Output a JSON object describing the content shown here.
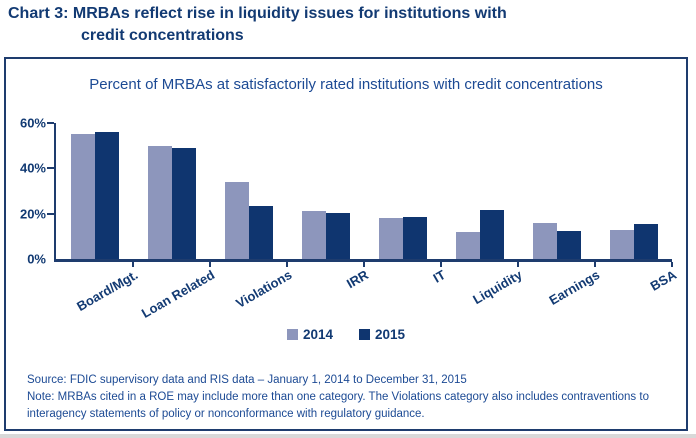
{
  "title": {
    "line1": "Chart 3: MRBAs reflect rise in liquidity issues for institutions with",
    "line2": "credit concentrations"
  },
  "chart_data": {
    "type": "bar",
    "title": "Percent of MRBAs at satisfactorily rated institutions with credit concentrations",
    "categories": [
      "Board/Mgt.",
      "Loan Related",
      "Violations",
      "IRR",
      "IT",
      "Liquidity",
      "Earnings",
      "BSA"
    ],
    "series": [
      {
        "name": "2014",
        "color": "#8D96BC",
        "values": [
          55,
          50,
          34,
          21,
          18,
          12,
          16,
          13
        ]
      },
      {
        "name": "2015",
        "color": "#0F356F",
        "values": [
          56,
          49,
          23.5,
          20.5,
          18.5,
          21.5,
          12.5,
          15.5
        ]
      }
    ],
    "ylim": [
      0,
      60
    ],
    "yticks": [
      "60%",
      "40%",
      "20%",
      "0%"
    ],
    "ylabel": "",
    "xlabel": "",
    "grid": false,
    "legend_position": "bottom"
  },
  "footer": {
    "source": "Source: FDIC supervisory data and RIS data – January 1, 2014 to December 31, 2015",
    "note_line1": "Note: MRBAs cited in a ROE may include more than one category. The Violations category also includes contraventions to",
    "note_line2": "interagency statements of policy or nonconformance with regulatory guidance."
  },
  "colors": {
    "navy_text": "#123A73",
    "blue_text": "#1C4A94",
    "axis": "#1E3C6E",
    "bar_2014": "#8D96BC",
    "bar_2015": "#0F356F",
    "bottom_strip": "#D8D8D8"
  }
}
